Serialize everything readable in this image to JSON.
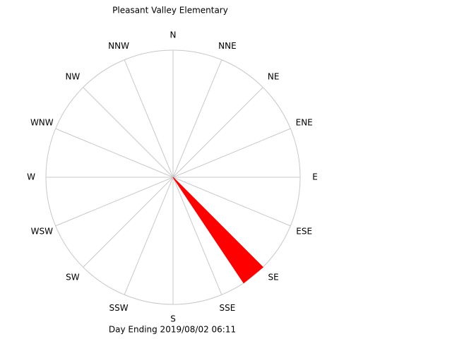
{
  "chart_data": {
    "type": "windrose",
    "title": "Pleasant Valley Elementary",
    "footer": "Day Ending 2019/08/02 06:11",
    "categories": [
      "N",
      "NNE",
      "NE",
      "ENE",
      "E",
      "ESE",
      "SE",
      "SSE",
      "S",
      "SSW",
      "SW",
      "WSW",
      "W",
      "WNW",
      "NW",
      "NNW"
    ],
    "values": [
      0,
      0,
      0,
      0,
      0,
      0,
      100,
      0,
      0,
      0,
      0,
      0,
      0,
      0,
      0,
      0
    ],
    "rlim": [
      0,
      100
    ],
    "color": "#ff0000",
    "grid": true
  }
}
